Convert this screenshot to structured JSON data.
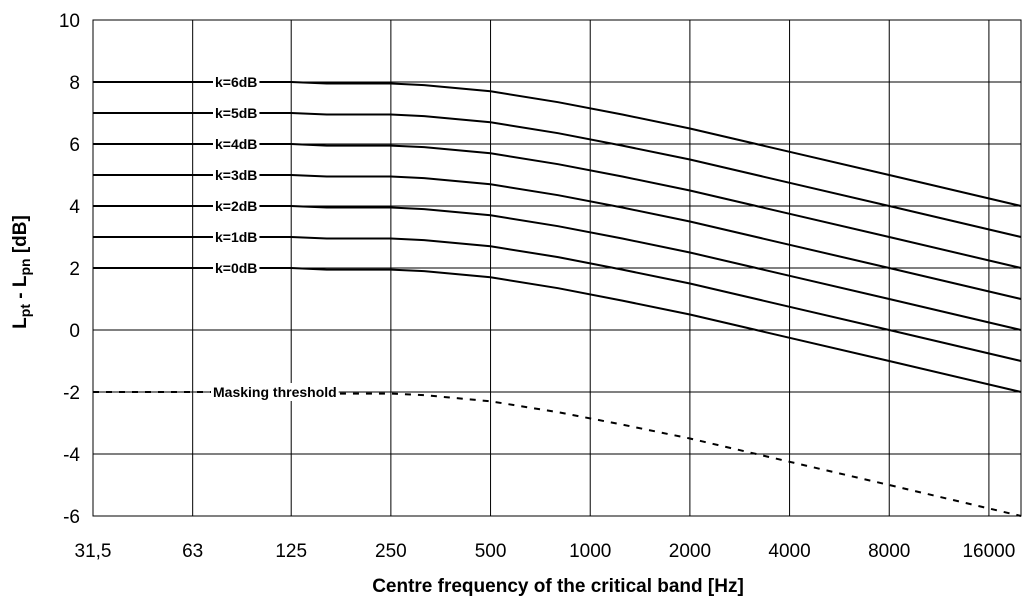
{
  "chart_data": {
    "type": "line",
    "title": "",
    "xlabel": "Centre frequency of the critical band [Hz]",
    "ylabel": {
      "main_1": "L",
      "sub_1": "pt",
      "main_2": " - L",
      "sub_2": "pn",
      "main_3": " [dB]"
    },
    "x_scale": "log2",
    "x_ticks": [
      "31,5",
      "63",
      "125",
      "250",
      "500",
      "1000",
      "2000",
      "4000",
      "8000",
      "16000"
    ],
    "x_tick_values": [
      31.5,
      63,
      125,
      250,
      500,
      1000,
      2000,
      4000,
      8000,
      16000
    ],
    "xlim": [
      31.5,
      20000
    ],
    "y_ticks": [
      "10",
      "8",
      "6",
      "4",
      "2",
      "0",
      "-2",
      "-4",
      "-6"
    ],
    "y_tick_values": [
      10,
      8,
      6,
      4,
      2,
      0,
      -2,
      -4,
      -6
    ],
    "ylim": [
      -6,
      10
    ],
    "grid": true,
    "x": [
      31.5,
      63,
      125,
      160,
      250,
      315,
      500,
      800,
      1250,
      2000,
      4000,
      8000,
      20000
    ],
    "series": [
      {
        "label": "k=6dB",
        "style": "solid",
        "values": [
          8,
          8,
          8,
          7.95,
          7.95,
          7.9,
          7.7,
          7.35,
          6.95,
          6.5,
          5.75,
          5.0,
          4.0
        ]
      },
      {
        "label": "k=5dB",
        "style": "solid",
        "values": [
          7,
          7,
          7,
          6.95,
          6.95,
          6.9,
          6.7,
          6.35,
          5.95,
          5.5,
          4.75,
          4.0,
          3.0
        ]
      },
      {
        "label": "k=4dB",
        "style": "solid",
        "values": [
          6,
          6,
          6,
          5.95,
          5.95,
          5.9,
          5.7,
          5.35,
          4.95,
          4.5,
          3.75,
          3.0,
          2.0
        ]
      },
      {
        "label": "k=3dB",
        "style": "solid",
        "values": [
          5,
          5,
          5,
          4.95,
          4.95,
          4.9,
          4.7,
          4.35,
          3.95,
          3.5,
          2.75,
          2.0,
          1.0
        ]
      },
      {
        "label": "k=2dB",
        "style": "solid",
        "values": [
          4,
          4,
          4,
          3.95,
          3.95,
          3.9,
          3.7,
          3.35,
          2.95,
          2.5,
          1.75,
          1.0,
          0.0
        ]
      },
      {
        "label": "k=1dB",
        "style": "solid",
        "values": [
          3,
          3,
          3,
          2.95,
          2.95,
          2.9,
          2.7,
          2.35,
          1.95,
          1.5,
          0.75,
          0.0,
          -1.0
        ]
      },
      {
        "label": "k=0dB",
        "style": "solid",
        "values": [
          2,
          2,
          2,
          1.95,
          1.95,
          1.9,
          1.7,
          1.35,
          0.95,
          0.5,
          -0.25,
          -1.0,
          -2.0
        ]
      },
      {
        "label": "Masking threshold",
        "style": "dashed",
        "values": [
          -2,
          -2,
          -2,
          -2.05,
          -2.05,
          -2.1,
          -2.3,
          -2.65,
          -3.05,
          -3.5,
          -4.25,
          -5.0,
          -6.0
        ]
      }
    ],
    "colors": {
      "line": "#000000",
      "grid": "#000000",
      "background": "#ffffff"
    }
  }
}
